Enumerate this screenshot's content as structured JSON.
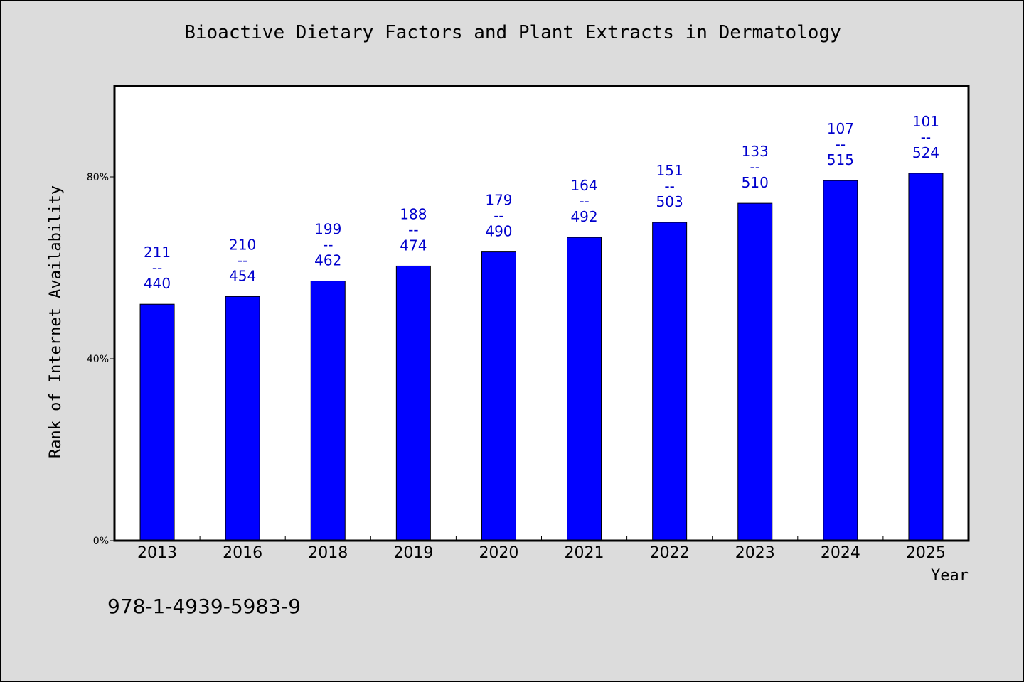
{
  "chart_data": {
    "type": "bar",
    "title": "Bioactive Dietary Factors and Plant Extracts in Dermatology",
    "xlabel": "Year",
    "ylabel": "Rank of Internet Availability",
    "categories": [
      "2013",
      "2016",
      "2018",
      "2019",
      "2020",
      "2021",
      "2022",
      "2023",
      "2024",
      "2025"
    ],
    "values": [
      52.0,
      53.7,
      57.1,
      60.4,
      63.5,
      66.7,
      70.0,
      74.2,
      79.2,
      80.8
    ],
    "value_unit": "%",
    "data_labels": [
      {
        "top": "211",
        "sep": "--",
        "bottom": "440"
      },
      {
        "top": "210",
        "sep": "--",
        "bottom": "454"
      },
      {
        "top": "199",
        "sep": "--",
        "bottom": "462"
      },
      {
        "top": "188",
        "sep": "--",
        "bottom": "474"
      },
      {
        "top": "179",
        "sep": "--",
        "bottom": "490"
      },
      {
        "top": "164",
        "sep": "--",
        "bottom": "492"
      },
      {
        "top": "151",
        "sep": "--",
        "bottom": "503"
      },
      {
        "top": "133",
        "sep": "--",
        "bottom": "510"
      },
      {
        "top": "107",
        "sep": "--",
        "bottom": "515"
      },
      {
        "top": "101",
        "sep": "--",
        "bottom": "524"
      }
    ],
    "ylim": [
      0,
      100
    ],
    "yticks": [
      0,
      40,
      80
    ],
    "ytick_labels": [
      "0%",
      "40%",
      "80%"
    ],
    "grid": false,
    "bar_color": "#0000ff",
    "label_color": "#0000cc"
  },
  "footer": {
    "id_text": "978-1-4939-5983-9"
  }
}
